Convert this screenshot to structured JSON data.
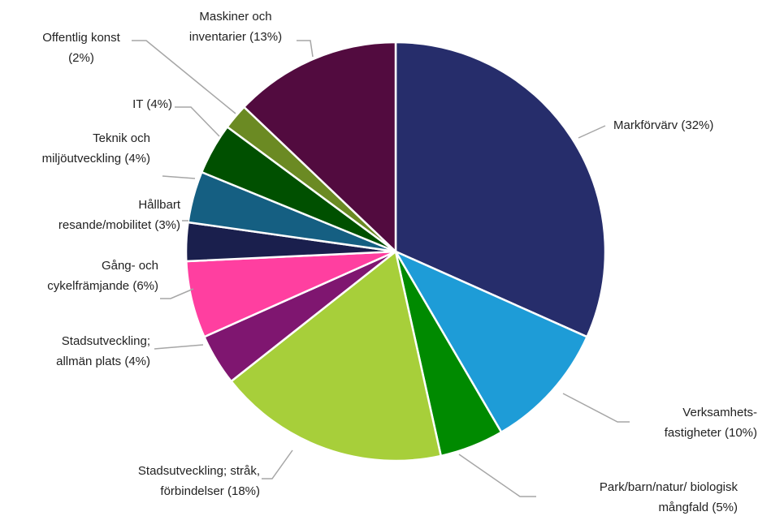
{
  "chart_data": {
    "type": "pie",
    "categories": [
      "Markförvärv",
      "Verksamhets-fastigheter",
      "Park/barn/natur/ biologisk mångfald",
      "Stadsutveckling; stråk, förbindelser",
      "Stadsutveckling; allmän plats",
      "Gång- och cykelfrämjande",
      "Hållbart resande/mobilitet",
      "Teknik och miljöutveckling",
      "IT",
      "Offentlig konst",
      "Maskiner och inventarier"
    ],
    "values": [
      32,
      10,
      5,
      18,
      4,
      6,
      3,
      4,
      4,
      2,
      13
    ],
    "value_labels": [
      "(32%)",
      "(10%)",
      "(5%)",
      "(18%)",
      "(4%)",
      "(6%)",
      "(3%)",
      "(4%)",
      "(4%)",
      "(2%)",
      "(13%)"
    ],
    "colors": [
      "#262d6b",
      "#1e9cd7",
      "#008a00",
      "#a7cf3a",
      "#7f1670",
      "#ff3fa0",
      "#1a1f4d",
      "#155f82",
      "#005000",
      "#6b8a23",
      "#520b3f"
    ]
  }
}
